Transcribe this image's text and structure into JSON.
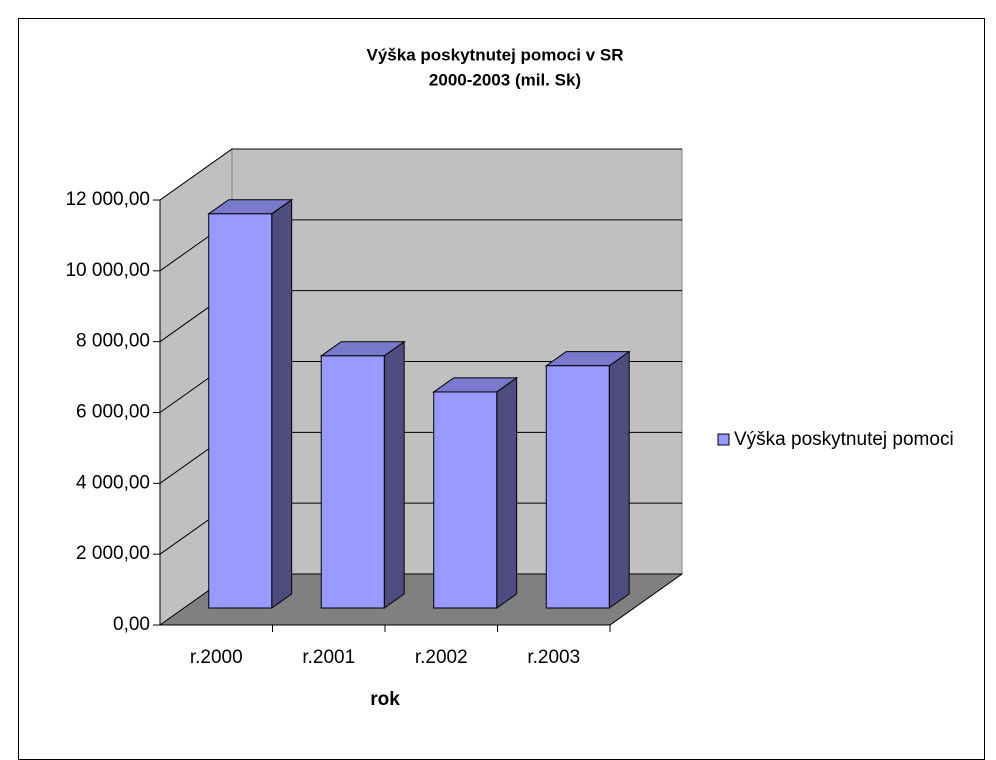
{
  "chart_data": {
    "type": "bar",
    "title": [
      "Výška poskytnutej pomoci v SR",
      "2000-2003  (mil. Sk)"
    ],
    "x_label": "rok",
    "categories": [
      "r.2000",
      "r.2001",
      "r.2002",
      "r.2003"
    ],
    "series": [
      {
        "name": "Výška poskytnutej pomoci",
        "color": "#9999ff",
        "values": [
          11130,
          7120,
          6100,
          6840
        ]
      }
    ],
    "ylim": [
      0,
      12000
    ],
    "yticks": [
      {
        "value": 0,
        "label": "0,00"
      },
      {
        "value": 2000,
        "label": "2 000,00"
      },
      {
        "value": 4000,
        "label": "4 000,00"
      },
      {
        "value": 6000,
        "label": "6 000,00"
      },
      {
        "value": 8000,
        "label": "8 000,00"
      },
      {
        "value": 10000,
        "label": "10 000,00"
      },
      {
        "value": 12000,
        "label": "12 000,00"
      }
    ],
    "grid": true,
    "legend": "right"
  }
}
